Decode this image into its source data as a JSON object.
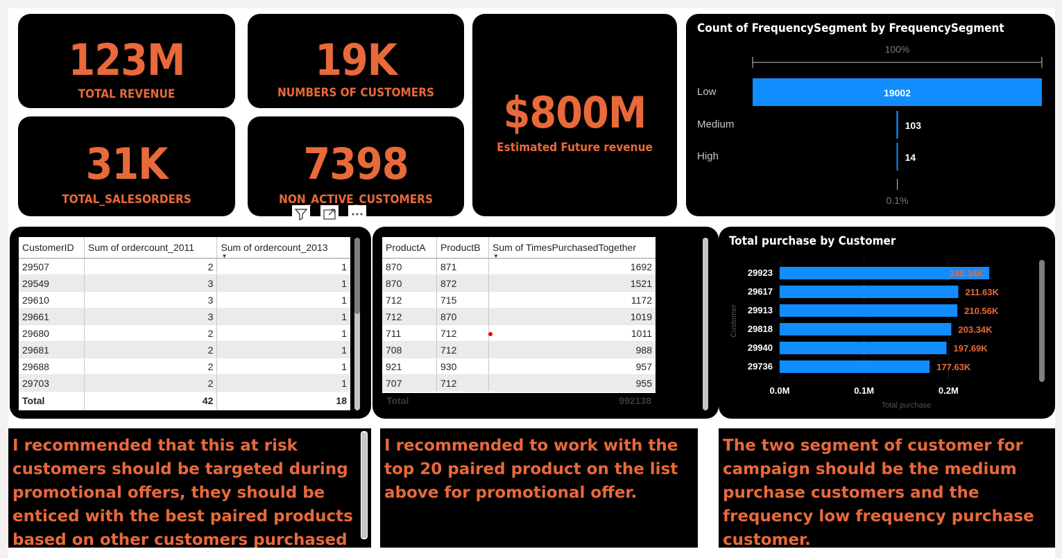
{
  "kpis": {
    "total_revenue": {
      "value": "123M",
      "label": "TOTAL REVENUE"
    },
    "customers": {
      "value": "19K",
      "label": "NUMBERS OF CUSTOMERS"
    },
    "sales_orders": {
      "value": "31K",
      "label": "TOTAL_SALESORDERS"
    },
    "non_active": {
      "value": "7398",
      "label": "NON_ACTIVE_CUSTOMERS"
    },
    "future_revenue": {
      "value": "$800M",
      "label": "Estimated Future revenue"
    }
  },
  "colors": {
    "accent": "#e8693a",
    "bar": "#118dff",
    "card": "#000000"
  },
  "visual_header_icons": [
    "filter-icon",
    "focus-mode-icon",
    "more-options-icon"
  ],
  "chart_data": [
    {
      "type": "bar",
      "orientation": "horizontal",
      "title": "Count of FrequencySegment by FrequencySegment",
      "categories": [
        "Low",
        "Medium",
        "High"
      ],
      "values": [
        19002,
        103,
        14
      ],
      "axis_top_label": "100%",
      "axis_bottom_label": "0.1%"
    },
    {
      "type": "bar",
      "orientation": "horizontal",
      "title": "Total purchase by Customer",
      "categories": [
        "29923",
        "29617",
        "29913",
        "29818",
        "29940",
        "29736"
      ],
      "values": [
        248340,
        211630,
        210560,
        203340,
        197690,
        177630
      ],
      "data_labels": [
        "248.34K",
        "211.63K",
        "210.56K",
        "203.34K",
        "197.69K",
        "177.63K"
      ],
      "xlabel": "Total purchase",
      "ylabel": "Customer",
      "xticks": [
        "0.0M",
        "0.1M",
        "0.2M"
      ],
      "xlim": [
        0,
        300000
      ]
    }
  ],
  "customer_table": {
    "columns": [
      "CustomerID",
      "Sum of ordercount_2011",
      "Sum of ordercount_2013"
    ],
    "rows": [
      [
        "29507",
        "2",
        "1"
      ],
      [
        "29549",
        "3",
        "1"
      ],
      [
        "29610",
        "3",
        "1"
      ],
      [
        "29661",
        "3",
        "1"
      ],
      [
        "29680",
        "2",
        "1"
      ],
      [
        "29681",
        "2",
        "1"
      ],
      [
        "29688",
        "2",
        "1"
      ],
      [
        "29703",
        "2",
        "1"
      ]
    ],
    "total": [
      "Total",
      "42",
      "18"
    ]
  },
  "product_table": {
    "columns": [
      "ProductA",
      "ProductB",
      "Sum of TimesPurchasedTogether"
    ],
    "rows": [
      [
        "870",
        "871",
        "1692"
      ],
      [
        "870",
        "872",
        "1521"
      ],
      [
        "712",
        "715",
        "1172"
      ],
      [
        "712",
        "870",
        "1019"
      ],
      [
        "711",
        "712",
        "1011"
      ],
      [
        "708",
        "712",
        "988"
      ],
      [
        "921",
        "930",
        "957"
      ],
      [
        "707",
        "712",
        "955"
      ]
    ],
    "total": [
      "Total",
      "",
      "992138"
    ]
  },
  "recommendations": [
    "I recommended that this at risk customers should be targeted during promotional offers, they should be enticed with the best paired products based on other customers purchased history.",
    "I recommended to work with the top 20 paired product on the list above for promotional offer.",
    "The two segment of customer for campaign should be the medium purchase customers and the frequency low frequency purchase  customer."
  ]
}
